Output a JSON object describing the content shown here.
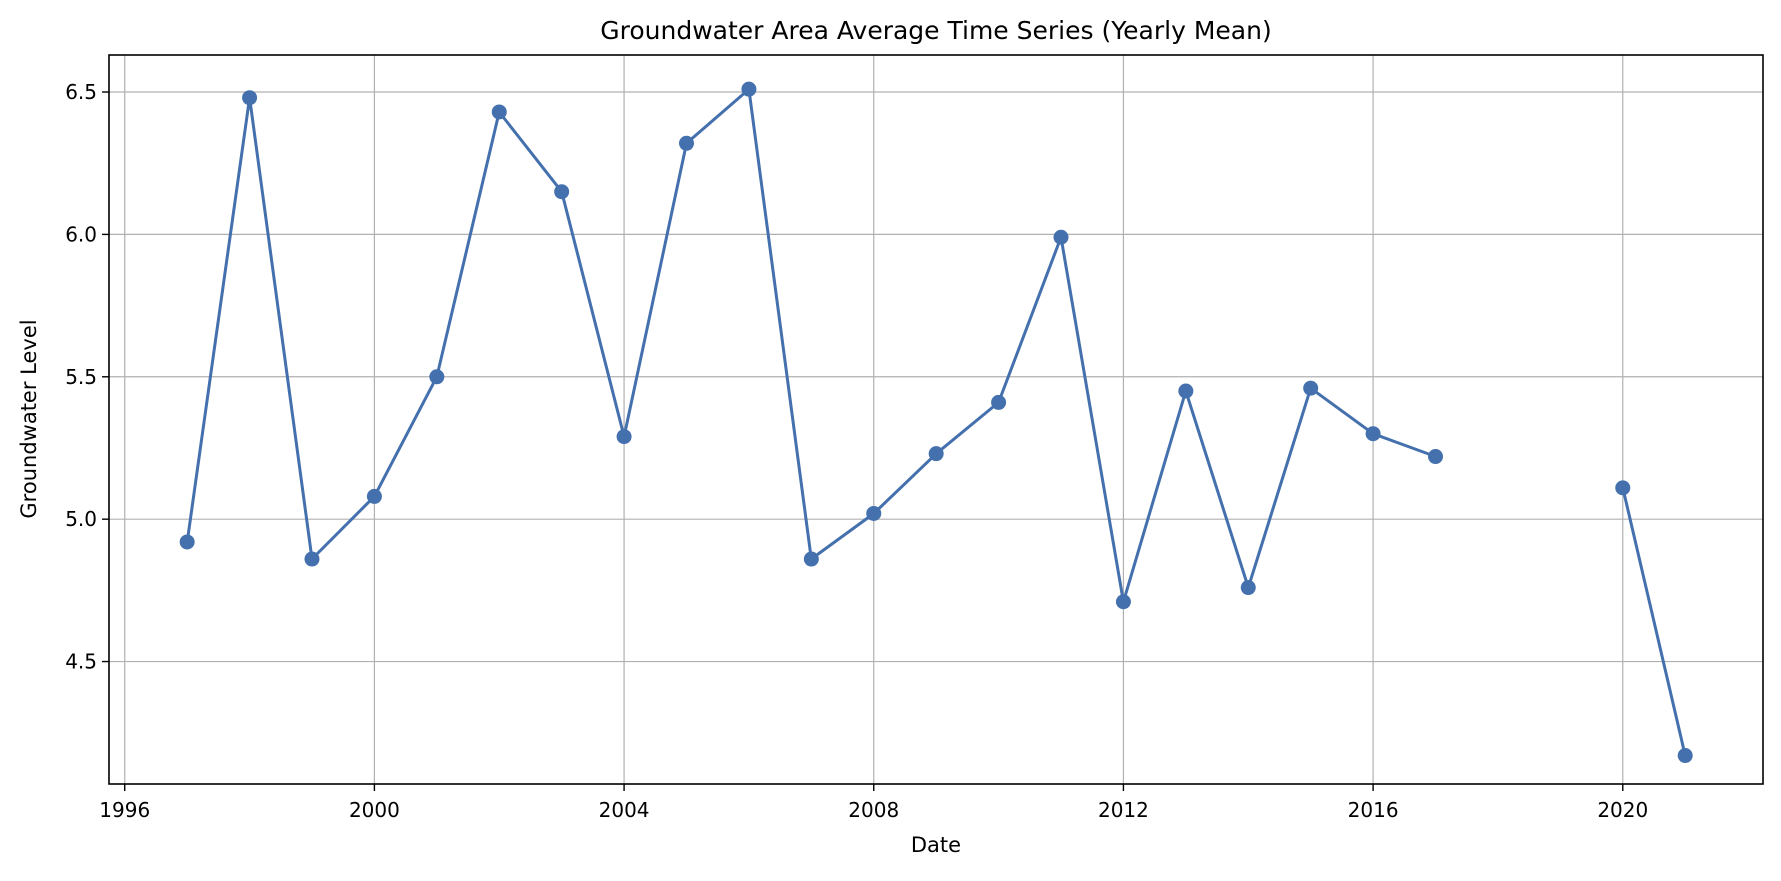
{
  "chart_data": {
    "type": "line",
    "title": "Groundwater Area Average Time Series (Yearly Mean)",
    "xlabel": "Date",
    "ylabel": "Groundwater Level",
    "x_ticks": [
      "1996",
      "2000",
      "2004",
      "2008",
      "2012",
      "2016",
      "2020"
    ],
    "y_ticks": [
      "4.5",
      "5.0",
      "5.5",
      "6.0",
      "6.5"
    ],
    "xlim": [
      "1995-10-01",
      "2022-04-01"
    ],
    "ylim": [
      4.07,
      6.63
    ],
    "grid": true,
    "marker": "circle",
    "color": "#4470ad",
    "series": [
      {
        "points": [
          {
            "x": "1997",
            "y": 4.92
          },
          {
            "x": "1998",
            "y": 6.48
          },
          {
            "x": "1999",
            "y": 4.86
          },
          {
            "x": "2000",
            "y": 5.08
          },
          {
            "x": "2001",
            "y": 5.5
          },
          {
            "x": "2002",
            "y": 6.43
          },
          {
            "x": "2003",
            "y": 6.15
          },
          {
            "x": "2004",
            "y": 5.29
          },
          {
            "x": "2005",
            "y": 6.32
          },
          {
            "x": "2006",
            "y": 6.51
          },
          {
            "x": "2007",
            "y": 4.86
          },
          {
            "x": "2008",
            "y": 5.02
          },
          {
            "x": "2009",
            "y": 5.23
          },
          {
            "x": "2010",
            "y": 5.41
          },
          {
            "x": "2011",
            "y": 5.99
          },
          {
            "x": "2012",
            "y": 4.71
          },
          {
            "x": "2013",
            "y": 5.45
          },
          {
            "x": "2014",
            "y": 4.76
          },
          {
            "x": "2015",
            "y": 5.46
          },
          {
            "x": "2016",
            "y": 5.3
          },
          {
            "x": "2017",
            "y": 5.22
          },
          {
            "x": "2018",
            "y": null
          },
          {
            "x": "2019",
            "y": null
          },
          {
            "x": "2020",
            "y": 5.11
          },
          {
            "x": "2021",
            "y": 4.17
          }
        ]
      }
    ]
  }
}
